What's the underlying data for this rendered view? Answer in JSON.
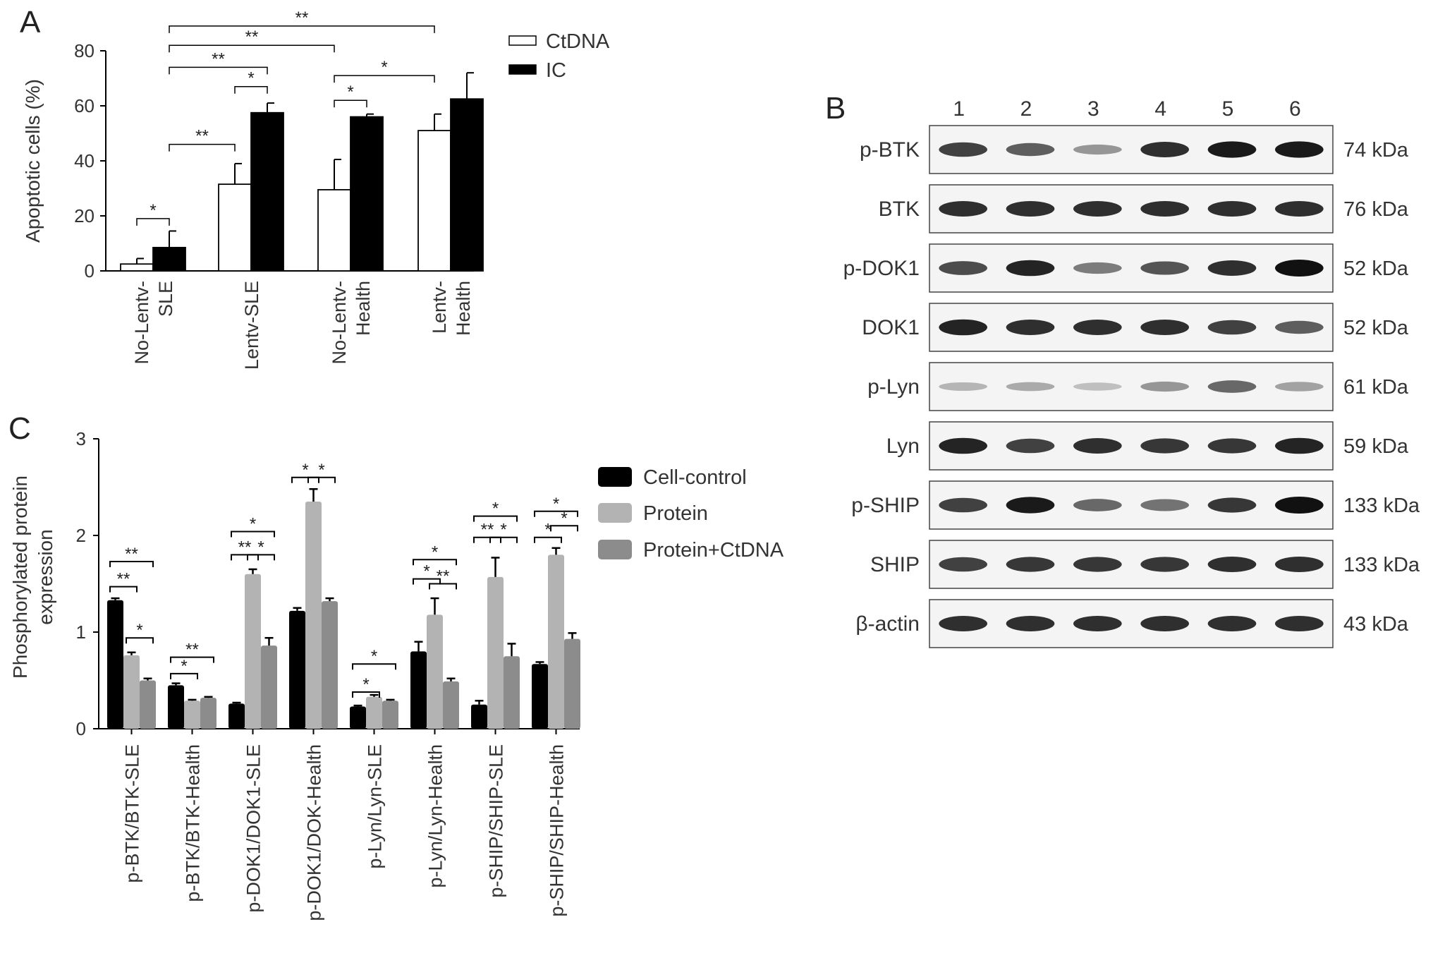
{
  "panels": [
    {
      "letter": "A",
      "chart_data": {
        "type": "bar",
        "ylabel": "Apoptotic cells (%)",
        "ylim": [
          0,
          80
        ],
        "yticks": [
          "0",
          "20",
          "40",
          "60",
          "80"
        ],
        "categories": [
          [
            "No-Lentv-",
            "SLE"
          ],
          [
            "Lentv-SLE"
          ],
          [
            "No-Lentv-",
            "Health"
          ],
          [
            "Lentv-",
            "Health"
          ]
        ],
        "series": [
          {
            "name": "CtDNA",
            "color": "#ffffff",
            "values": [
              2.5,
              31.5,
              29.5,
              51
            ],
            "errors": [
              2,
              7.5,
              11,
              6
            ]
          },
          {
            "name": "IC",
            "color": "#000000",
            "values": [
              8.5,
              57.5,
              56,
              62.5
            ],
            "errors": [
              6,
              3.5,
              1,
              9.5
            ]
          }
        ],
        "legend": "top-right",
        "significance": [
          {
            "label": "*",
            "from": [
              0,
              0
            ],
            "to": [
              0,
              1
            ],
            "level": 19
          },
          {
            "label": "**",
            "from": [
              0,
              1
            ],
            "to": [
              1,
              0
            ],
            "level": 46
          },
          {
            "label": "*",
            "from": [
              1,
              0
            ],
            "to": [
              1,
              1
            ],
            "level": 67
          },
          {
            "label": "**",
            "from": [
              0,
              1
            ],
            "to": [
              1,
              1
            ],
            "level": 74
          },
          {
            "label": "*",
            "from": [
              2,
              0
            ],
            "to": [
              2,
              1
            ],
            "level": 62
          },
          {
            "label": "*",
            "from": [
              2,
              0
            ],
            "to": [
              3,
              0
            ],
            "level": 71
          },
          {
            "label": "**",
            "from": [
              0,
              1
            ],
            "to": [
              2,
              0
            ],
            "level": 82
          },
          {
            "label": "**",
            "from": [
              0,
              1
            ],
            "to": [
              3,
              0
            ],
            "level": 89
          }
        ]
      }
    },
    {
      "letter": "B",
      "blot": {
        "lanes": [
          "1",
          "2",
          "3",
          "4",
          "5",
          "6"
        ],
        "rows": [
          {
            "label": "p-BTK",
            "kda": "74 kDa",
            "intensity": [
              0.75,
              0.6,
              0.3,
              0.85,
              0.95,
              0.95
            ]
          },
          {
            "label": "BTK",
            "kda": "76 kDa",
            "intensity": [
              0.85,
              0.85,
              0.85,
              0.85,
              0.85,
              0.85
            ]
          },
          {
            "label": "p-DOK1",
            "kda": "52 kDa",
            "intensity": [
              0.7,
              0.9,
              0.45,
              0.65,
              0.85,
              1.0
            ]
          },
          {
            "label": "DOK1",
            "kda": "52 kDa",
            "intensity": [
              0.9,
              0.85,
              0.85,
              0.85,
              0.75,
              0.6
            ]
          },
          {
            "label": "p-Lyn",
            "kda": "61 kDa",
            "intensity": [
              0.15,
              0.2,
              0.1,
              0.3,
              0.55,
              0.25
            ]
          },
          {
            "label": "Lyn",
            "kda": "59 kDa",
            "intensity": [
              0.9,
              0.75,
              0.85,
              0.8,
              0.8,
              0.9
            ]
          },
          {
            "label": "p-SHIP",
            "kda": "133 kDa",
            "intensity": [
              0.75,
              0.95,
              0.55,
              0.5,
              0.8,
              1.0
            ]
          },
          {
            "label": "SHIP",
            "kda": "133 kDa",
            "intensity": [
              0.75,
              0.8,
              0.8,
              0.8,
              0.85,
              0.85
            ]
          },
          {
            "label": "β-actin",
            "kda": "43 kDa",
            "intensity": [
              0.85,
              0.85,
              0.85,
              0.85,
              0.85,
              0.85
            ]
          }
        ]
      }
    },
    {
      "letter": "C",
      "chart_data": {
        "type": "bar",
        "ylabel": [
          "Phosphorylated protein",
          "expression"
        ],
        "ylim": [
          0,
          3
        ],
        "yticks": [
          "0",
          "1",
          "2",
          "3"
        ],
        "categories": [
          "p-BTK/BTK-SLE",
          "p-BTK/BTK-Health",
          "p-DOK1/DOK1-SLE",
          "p-DOK1/DOK-Health",
          "p-Lyn/Lyn-SLE",
          "p-Lyn/Lyn-Health",
          "p-SHIP/SHIP-SLE",
          "p-SHIP/SHIP-Health"
        ],
        "series": [
          {
            "name": "Cell-control",
            "color": "#000000",
            "values": [
              1.33,
              0.45,
              0.26,
              1.22,
              0.23,
              0.8,
              0.25,
              0.67
            ],
            "errors": [
              0.02,
              0.02,
              0.01,
              0.03,
              0.01,
              0.1,
              0.04,
              0.02
            ]
          },
          {
            "name": "Protein",
            "color": "#b3b3b3",
            "values": [
              0.76,
              0.29,
              1.6,
              2.35,
              0.33,
              1.18,
              1.57,
              1.8
            ],
            "errors": [
              0.03,
              0.01,
              0.05,
              0.13,
              0.02,
              0.17,
              0.2,
              0.07
            ]
          },
          {
            "name": "Protein+CtDNA",
            "color": "#8c8c8c",
            "values": [
              0.5,
              0.32,
              0.86,
              1.32,
              0.29,
              0.49,
              0.75,
              0.93
            ],
            "errors": [
              0.02,
              0.01,
              0.08,
              0.03,
              0.01,
              0.03,
              0.13,
              0.06
            ]
          }
        ],
        "legend": "top-right",
        "significance": [
          {
            "label": "**",
            "from": [
              0,
              0
            ],
            "to": [
              0,
              1
            ],
            "level": 1.47
          },
          {
            "label": "**",
            "from": [
              0,
              0
            ],
            "to": [
              0,
              2
            ],
            "level": 1.73
          },
          {
            "label": "*",
            "from": [
              0,
              1
            ],
            "to": [
              0,
              2
            ],
            "level": 0.94
          },
          {
            "label": "*",
            "from": [
              1,
              0
            ],
            "to": [
              1,
              1
            ],
            "level": 0.57
          },
          {
            "label": "**",
            "from": [
              1,
              0
            ],
            "to": [
              1,
              2
            ],
            "level": 0.74
          },
          {
            "label": "**",
            "from": [
              2,
              0
            ],
            "to": [
              2,
              1
            ],
            "level": 1.8
          },
          {
            "label": "*",
            "from": [
              2,
              1
            ],
            "to": [
              2,
              2
            ],
            "level": 1.8
          },
          {
            "label": "*",
            "from": [
              2,
              0
            ],
            "to": [
              2,
              2
            ],
            "level": 2.04
          },
          {
            "label": "*",
            "from": [
              3,
              0
            ],
            "to": [
              3,
              1
            ],
            "level": 2.6
          },
          {
            "label": "*",
            "from": [
              3,
              1
            ],
            "to": [
              3,
              2
            ],
            "level": 2.6
          },
          {
            "label": "*",
            "from": [
              4,
              0
            ],
            "to": [
              4,
              1
            ],
            "level": 0.38
          },
          {
            "label": "*",
            "from": [
              4,
              0
            ],
            "to": [
              4,
              2
            ],
            "level": 0.67
          },
          {
            "label": "*",
            "from": [
              5,
              0
            ],
            "to": [
              5,
              1
            ],
            "level": 1.55
          },
          {
            "label": "**",
            "from": [
              5,
              1
            ],
            "to": [
              5,
              2
            ],
            "level": 1.5
          },
          {
            "label": "*",
            "from": [
              5,
              0
            ],
            "to": [
              5,
              2
            ],
            "level": 1.75
          },
          {
            "label": "**",
            "from": [
              6,
              0
            ],
            "to": [
              6,
              1
            ],
            "level": 1.98
          },
          {
            "label": "*",
            "from": [
              6,
              1
            ],
            "to": [
              6,
              2
            ],
            "level": 1.98
          },
          {
            "label": "*",
            "from": [
              6,
              0
            ],
            "to": [
              6,
              2
            ],
            "level": 2.2
          },
          {
            "label": "*",
            "from": [
              7,
              0
            ],
            "to": [
              7,
              1
            ],
            "level": 1.98
          },
          {
            "label": "*",
            "from": [
              7,
              1
            ],
            "to": [
              7,
              2
            ],
            "level": 2.1
          },
          {
            "label": "*",
            "from": [
              7,
              0
            ],
            "to": [
              7,
              2
            ],
            "level": 2.25
          }
        ]
      }
    }
  ]
}
